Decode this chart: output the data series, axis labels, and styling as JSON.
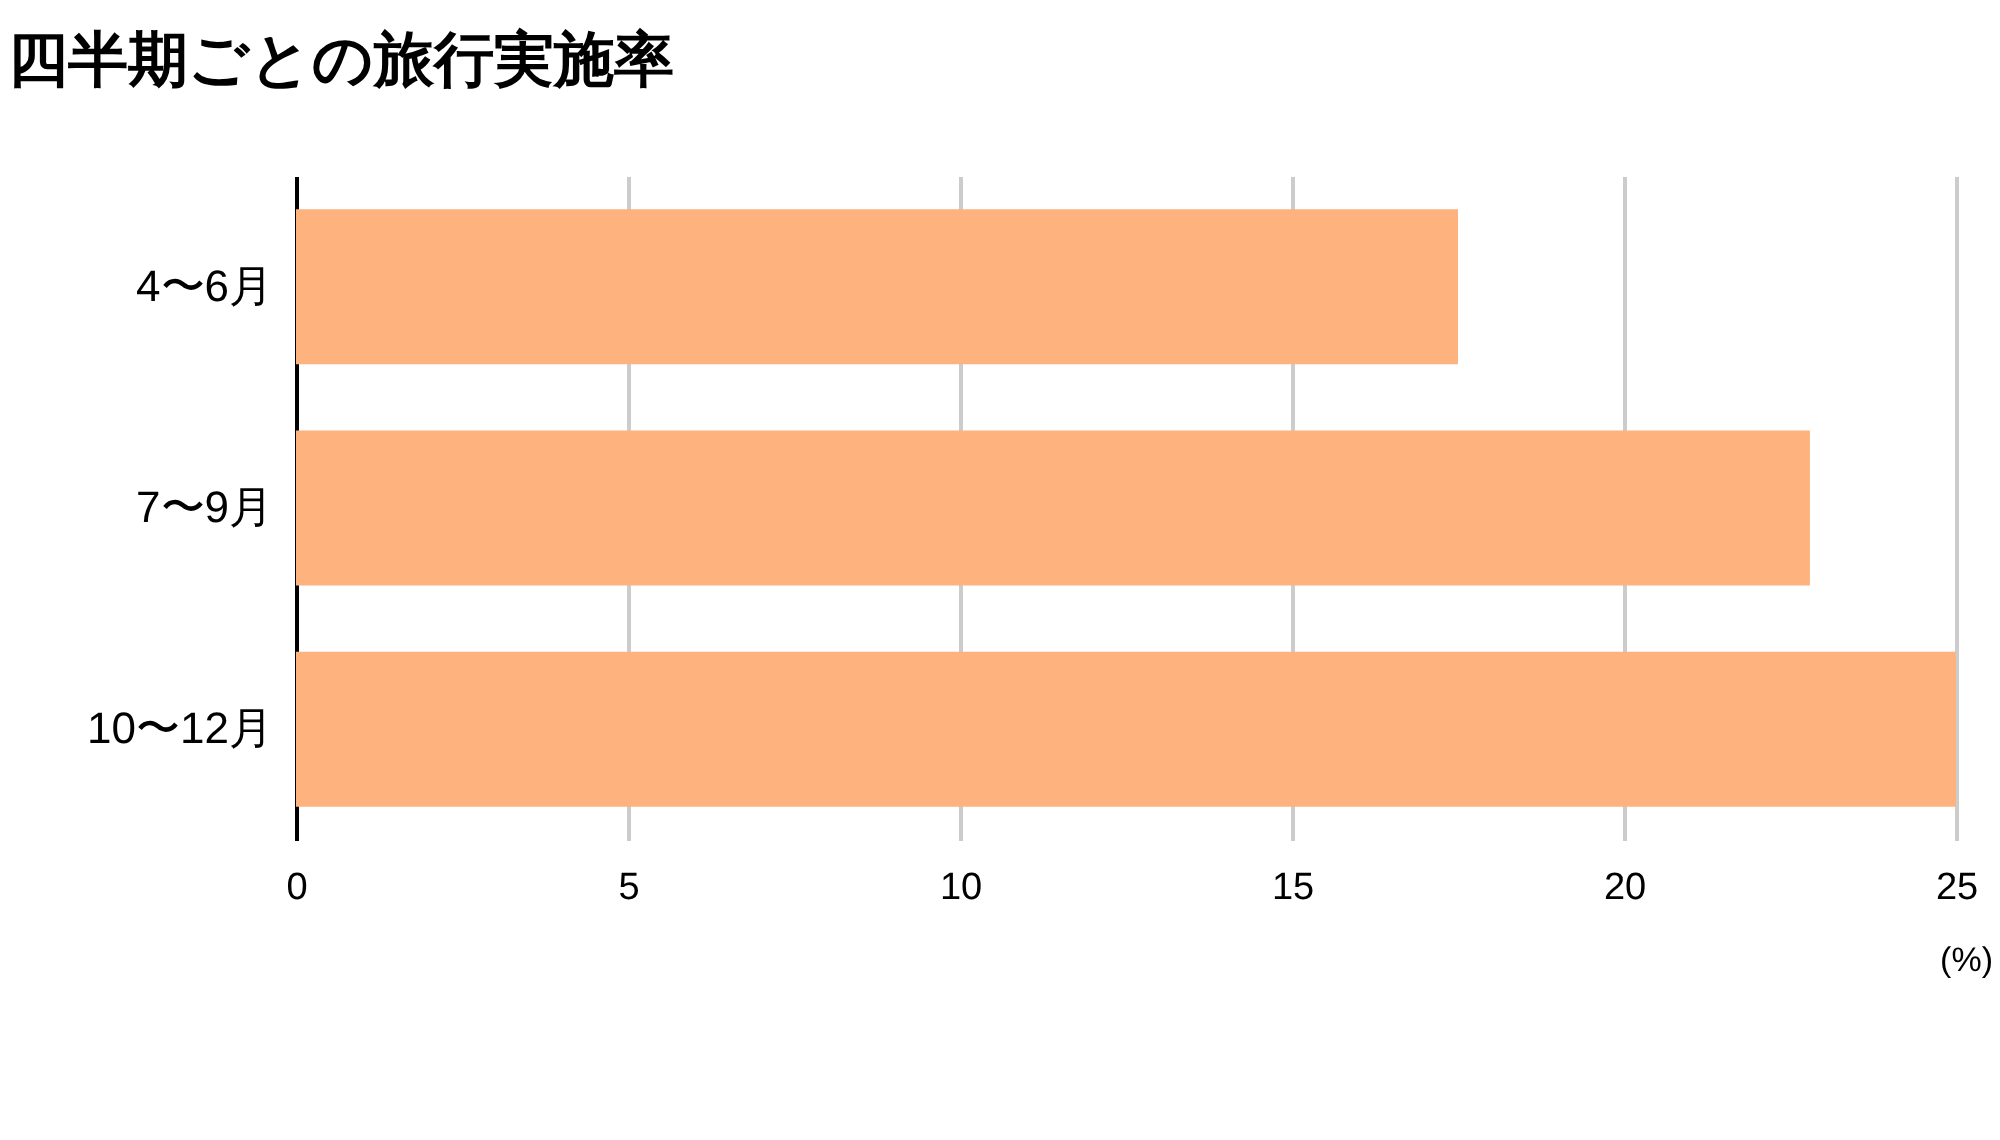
{
  "chart_data": {
    "type": "bar",
    "title": "四半期ごとの旅行実施率",
    "xlabel": "(%)",
    "orientation": "horizontal",
    "categories": [
      "4〜6月",
      "7〜9月",
      "10〜12月"
    ],
    "values": [
      17.5,
      22.8,
      25.0
    ],
    "color": "#feb27d",
    "xlim": [
      0,
      25
    ],
    "xticks": [
      0,
      5,
      10,
      15,
      20,
      25
    ],
    "grid": "x"
  }
}
